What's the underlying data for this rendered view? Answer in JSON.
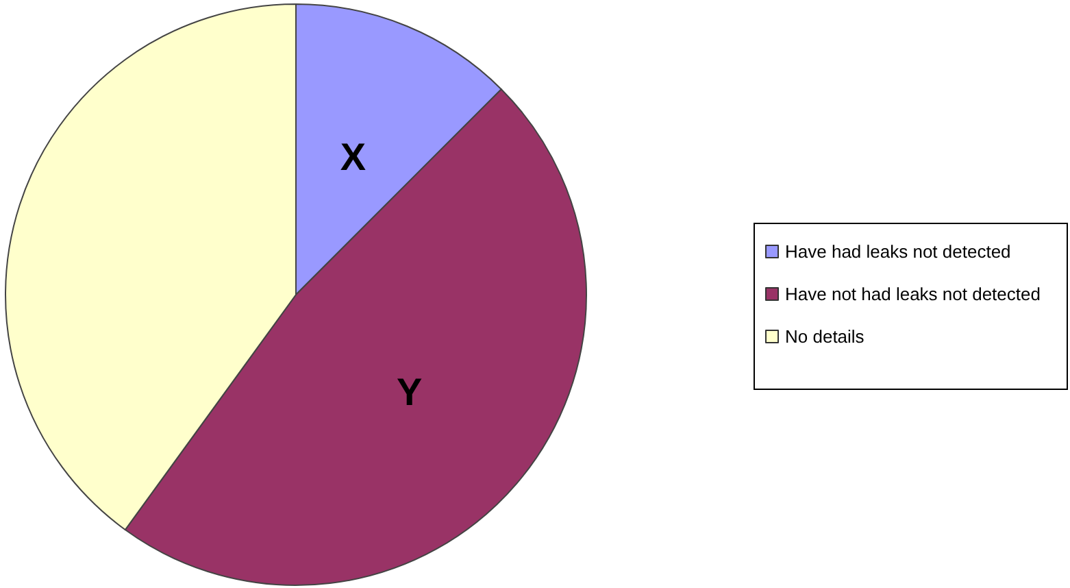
{
  "chart_data": {
    "type": "pie",
    "categories": [
      "Have had leaks not detected",
      "Have not had leaks not detected",
      "No details"
    ],
    "values": [
      12.5,
      47.5,
      40
    ],
    "colors": [
      "#9999ff",
      "#993366",
      "#ffffcc"
    ],
    "value_labels": [
      "X",
      "Y",
      null
    ],
    "legend": "right"
  }
}
